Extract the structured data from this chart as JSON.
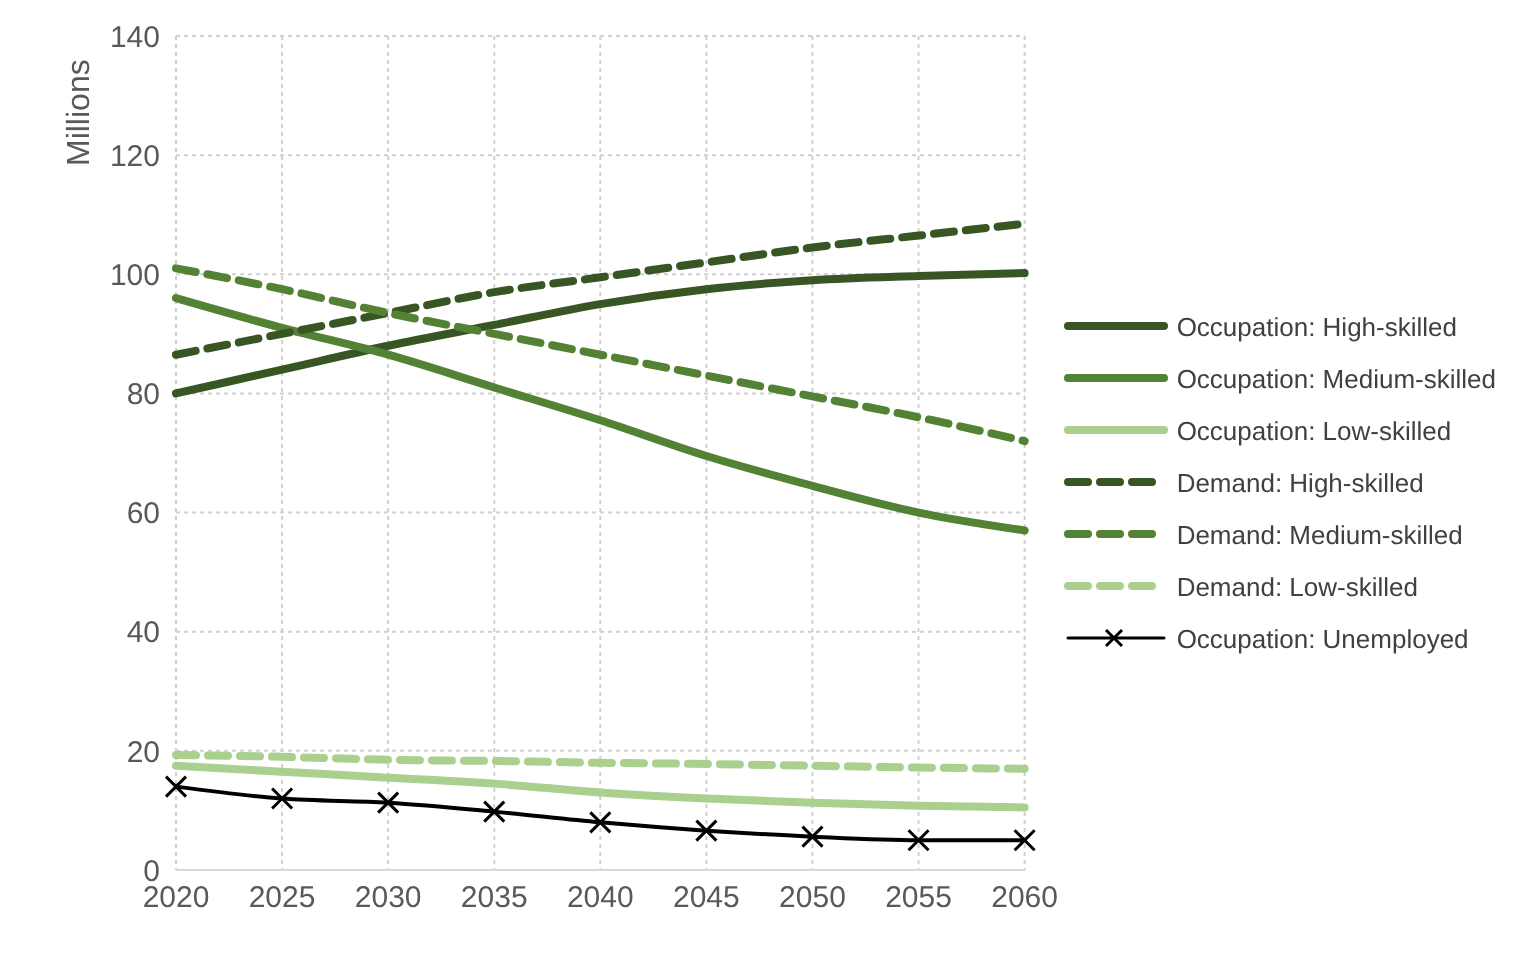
{
  "chart_data": {
    "type": "line",
    "ylabel": "Millions",
    "categories": [
      "2020",
      "2025",
      "2030",
      "2035",
      "2040",
      "2045",
      "2050",
      "2055",
      "2060"
    ],
    "ylim": [
      0,
      140
    ],
    "yticks": [
      0,
      20,
      40,
      60,
      80,
      100,
      120,
      140
    ],
    "grid": true,
    "legend": "right",
    "marker": "none",
    "series": [
      {
        "name": "Occupation:  High-skilled",
        "color": "#375623",
        "line_style": "solid",
        "values": [
          80,
          84,
          88,
          91.5,
          95,
          97.5,
          99,
          99.7,
          100.2
        ]
      },
      {
        "name": "Occupation:  Medium-skilled",
        "color": "#548235",
        "line_style": "solid",
        "values": [
          96,
          91,
          86.5,
          81,
          75.5,
          69.5,
          64.5,
          60,
          57
        ]
      },
      {
        "name": "Occupation:  Low-skilled",
        "color": "#a9d08e",
        "line_style": "solid",
        "values": [
          17.5,
          16.5,
          15.5,
          14.5,
          13,
          12,
          11.3,
          10.8,
          10.5
        ]
      },
      {
        "name": "Demand: High-skilled",
        "color": "#375623",
        "line_style": "dashed",
        "values": [
          86.5,
          90,
          93.5,
          97,
          99.5,
          102,
          104.5,
          106.5,
          108.5
        ]
      },
      {
        "name": "Demand: Medium-skilled",
        "color": "#548235",
        "line_style": "dashed",
        "values": [
          101,
          97.5,
          93.5,
          90,
          86.5,
          83,
          79.5,
          76,
          72
        ]
      },
      {
        "name": "Demand: Low-skilled",
        "color": "#a9d08e",
        "line_style": "dashed",
        "values": [
          19.3,
          19,
          18.5,
          18.3,
          18,
          17.8,
          17.5,
          17.2,
          17
        ]
      },
      {
        "name": "Occupation:  Unemployed",
        "color": "#000000",
        "line_style": "solid",
        "marker": "cross",
        "values": [
          14,
          12,
          11.3,
          9.8,
          8,
          6.6,
          5.6,
          5,
          5
        ]
      }
    ]
  }
}
